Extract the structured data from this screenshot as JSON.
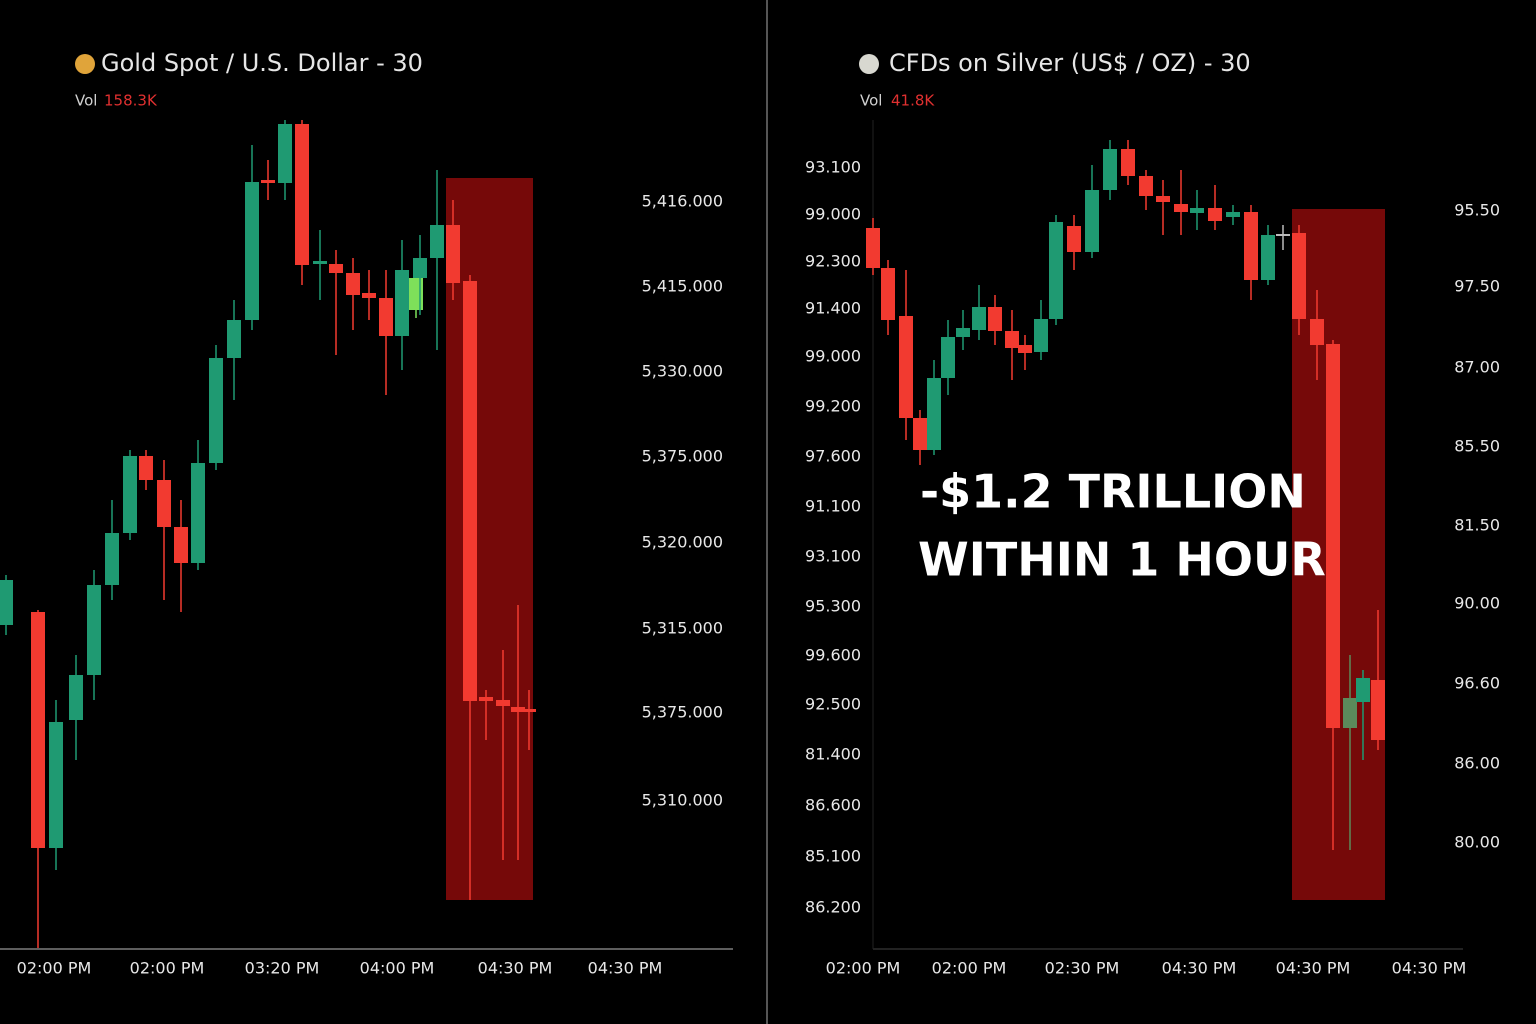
{
  "left": {
    "title": "Gold Spot / U.S. Dollar - 30",
    "vol_label": "Vol",
    "vol_value": "158.3K",
    "y_labels": [
      "5,416.000",
      "5,415.000",
      "5,330.000",
      "5,375.000",
      "5,320.000",
      "5,315.000",
      "5,375.000",
      "5,310.000"
    ],
    "x_labels": [
      "02:00 PM",
      "02:00 PM",
      "03:20 PM",
      "04:00 PM",
      "04:30 PM",
      "04:30 PM"
    ]
  },
  "right": {
    "title": "CFDs on Silver (US$ / OZ) - 30",
    "vol_label": "Vol",
    "vol_value": "41.8K",
    "y_labels": [
      "93.100",
      "99.000",
      "92.300",
      "91.400",
      "99.000",
      "99.200",
      "97.600",
      "91.100",
      "93.100",
      "95.300",
      "99.600",
      "92.500",
      "81.400",
      "86.600",
      "85.100",
      "86.200"
    ],
    "y2_labels": [
      "95.50",
      "97.50",
      "87.00",
      "85.50",
      "81.50",
      "90.00",
      "96.60",
      "86.00",
      "80.00"
    ],
    "x_labels": [
      "02:00 PM",
      "02:00 PM",
      "02:30 PM",
      "04:30 PM",
      "04:30 PM",
      "04:30 PM"
    ]
  },
  "annotation": [
    "-$1.2 TRILLION",
    "WITHIN 1 HOUR"
  ]
}
